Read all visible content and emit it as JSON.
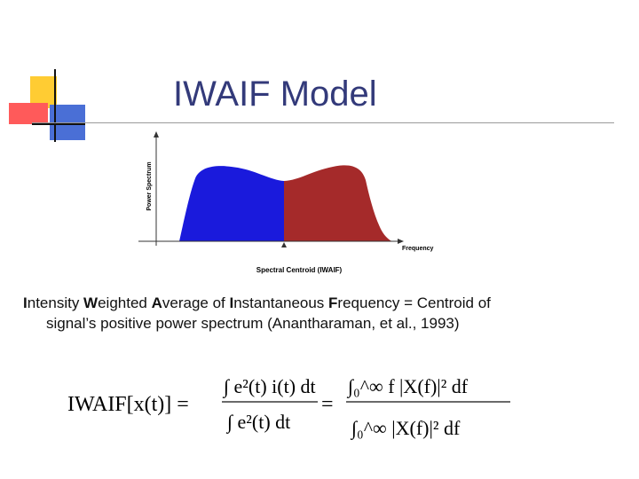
{
  "slide": {
    "title": "IWAIF Model",
    "accent_colors": {
      "yellow": "#ffcc33",
      "red": "#ff5a5a",
      "blue": "#4a6fd6",
      "title": "#333a7a"
    }
  },
  "diagram": {
    "y_axis_label": "Power Spectrum",
    "x_axis_label": "Frequency",
    "centroid_label": "Spectral Centroid (IWAIF)",
    "colors": {
      "left_region": "#1a1adc",
      "right_region": "#a52a2a"
    }
  },
  "text": {
    "line1_parts": [
      {
        "text": "I",
        "b": true
      },
      {
        "text": "ntensity ",
        "b": false
      },
      {
        "text": "W",
        "b": true
      },
      {
        "text": "eighted ",
        "b": false
      },
      {
        "text": "A",
        "b": true
      },
      {
        "text": "verage of ",
        "b": false
      },
      {
        "text": "I",
        "b": true
      },
      {
        "text": "nstantaneous ",
        "b": false
      },
      {
        "text": "F",
        "b": true
      },
      {
        "text": "requency = Centroid of",
        "b": false
      }
    ],
    "line2": "signal’s positive power spectrum (Anantharaman, et al., 1993)"
  },
  "formula": {
    "lhs": "IWAIF[x(t)] =",
    "frac1_num": "∫ e²(t) i(t) dt",
    "frac1_den": "∫ e²(t) dt",
    "frac2_num": "∫₀^∞ f |X(f)|² df",
    "frac2_den": "∫₀^∞ |X(f)|² df"
  }
}
